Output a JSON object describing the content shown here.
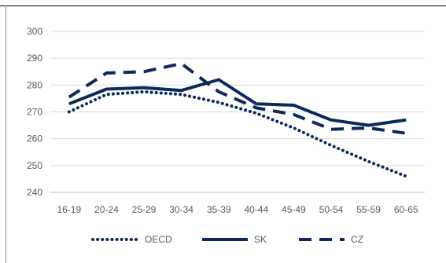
{
  "chart_data": {
    "type": "line",
    "title": "",
    "xlabel": "",
    "ylabel": "",
    "categories": [
      "16-19",
      "20-24",
      "25-29",
      "30-34",
      "35-39",
      "40-44",
      "45-49",
      "50-54",
      "55-59",
      "60-65"
    ],
    "ylim": [
      240,
      300
    ],
    "yticks": [
      240,
      250,
      260,
      270,
      280,
      290,
      300
    ],
    "grid": true,
    "legend_position": "bottom",
    "series": [
      {
        "name": "OECD",
        "style": "dotted",
        "color": "#0b2a5c",
        "values": [
          270,
          276.5,
          277.5,
          276.5,
          273.5,
          269.5,
          264,
          257.5,
          251.5,
          246
        ]
      },
      {
        "name": "SK",
        "style": "solid",
        "color": "#0b2a5c",
        "values": [
          273,
          278.5,
          279,
          278,
          282,
          273,
          272.5,
          267,
          265,
          267
        ]
      },
      {
        "name": "CZ",
        "style": "dashed",
        "color": "#0b2a5c",
        "values": [
          275.5,
          284.5,
          285,
          288,
          277.5,
          271.5,
          269,
          263.5,
          264,
          262
        ]
      }
    ]
  }
}
